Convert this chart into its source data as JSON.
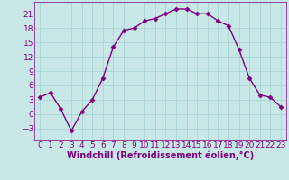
{
  "x": [
    0,
    1,
    2,
    3,
    4,
    5,
    6,
    7,
    8,
    9,
    10,
    11,
    12,
    13,
    14,
    15,
    16,
    17,
    18,
    19,
    20,
    21,
    22,
    23
  ],
  "y": [
    3.5,
    4.5,
    1.0,
    -3.5,
    0.5,
    3.0,
    7.5,
    14.0,
    17.5,
    18.0,
    19.5,
    20.0,
    21.0,
    22.0,
    22.0,
    21.0,
    21.0,
    19.5,
    18.5,
    13.5,
    7.5,
    4.0,
    3.5,
    1.5
  ],
  "line_color": "#800080",
  "marker": "D",
  "marker_size": 2.5,
  "bg_color": "#c8e8e8",
  "grid_color": "#aad4d4",
  "xlabel": "Windchill (Refroidissement éolien,°C)",
  "xlabel_fontsize": 7,
  "yticks": [
    -3,
    0,
    3,
    6,
    9,
    12,
    15,
    18,
    21
  ],
  "xticks": [
    0,
    1,
    2,
    3,
    4,
    5,
    6,
    7,
    8,
    9,
    10,
    11,
    12,
    13,
    14,
    15,
    16,
    17,
    18,
    19,
    20,
    21,
    22,
    23
  ],
  "xlim": [
    -0.5,
    23.5
  ],
  "ylim": [
    -5.5,
    23.5
  ],
  "tick_fontsize": 6.5,
  "line_width": 1.0,
  "text_color": "#800080"
}
